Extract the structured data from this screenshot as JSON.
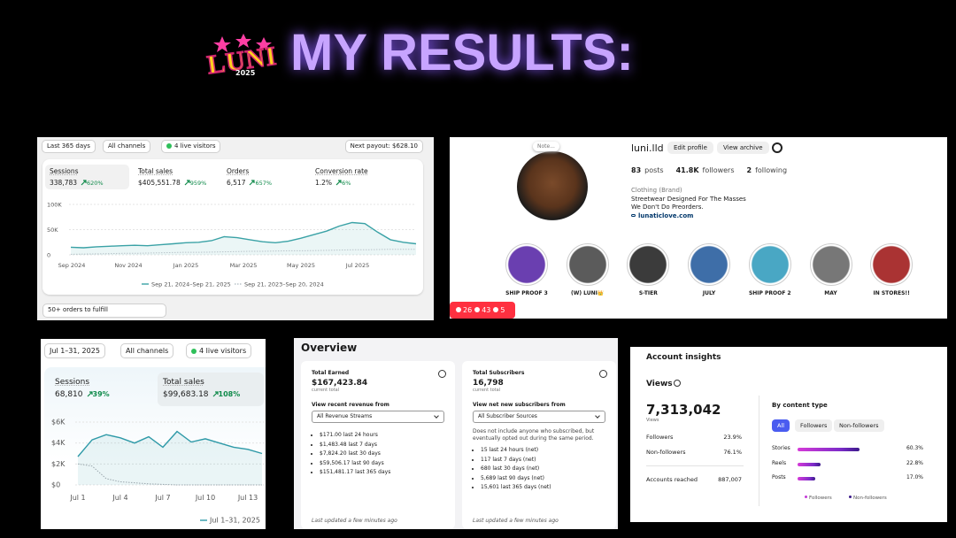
{
  "header": {
    "logo": "LUNI",
    "logo_year": "2025",
    "title": "MY RESULTS:"
  },
  "shop_year": {
    "filters": [
      "Last 365 days",
      "All channels",
      "4 live visitors"
    ],
    "payout": "Next payout: $628.10",
    "metrics": [
      {
        "label": "Sessions",
        "value": "338,783",
        "change": "620%"
      },
      {
        "label": "Total sales",
        "value": "$405,551.78",
        "change": "959%"
      },
      {
        "label": "Orders",
        "value": "6,517",
        "change": "657%"
      },
      {
        "label": "Conversion rate",
        "value": "1.2%",
        "change": "6%"
      }
    ],
    "chart": {
      "type": "line",
      "x_labels": [
        "Sep 2024",
        "Nov 2024",
        "Jan 2025",
        "Mar 2025",
        "May 2025",
        "Jul 2025"
      ],
      "ylim": [
        0,
        100000
      ],
      "yticks": [
        0,
        {
          "value": 50000,
          "label": "50K"
        },
        {
          "value": 100000,
          "label": "100K"
        }
      ],
      "grid": true,
      "series": [
        {
          "name": "Sep 21, 2024–Sep 21, 2025",
          "color": "#3aa2a6",
          "values": [
            15000,
            14000,
            16000,
            17000,
            18000,
            19000,
            18000,
            20000,
            22000,
            24000,
            25000,
            28000,
            36000,
            34000,
            30000,
            26000,
            24000,
            27000,
            33000,
            40000,
            47000,
            57000,
            64000,
            62000,
            45000,
            30000,
            25000,
            22000
          ]
        },
        {
          "name": "Sep 21, 2023–Sep 20, 2024",
          "color": "#b9c4ca",
          "dashed": true,
          "values": [
            1000,
            1500,
            2000,
            2500,
            3000,
            3000,
            3500,
            4000,
            4500,
            5000,
            5000,
            5500,
            6000,
            6500,
            7000,
            7000,
            7500,
            8000,
            8000,
            8500,
            9000,
            9500,
            10000,
            10000,
            10500,
            11000,
            11000,
            11000
          ]
        }
      ]
    },
    "orders": "50+ orders to fulfill"
  },
  "profile": {
    "handle": "luni.lld",
    "note": "Note...",
    "buttons": [
      "Edit profile",
      "View archive"
    ],
    "stats": [
      {
        "value": "83",
        "label": "posts"
      },
      {
        "value": "41.8K",
        "label": "followers"
      },
      {
        "value": "2",
        "label": "following"
      }
    ],
    "bio": [
      "Clothing (Brand)",
      "Streetwear Designed For The Masses",
      "We Don't Do Preorders."
    ],
    "link": "lunaticlove.com",
    "highlights": [
      "SHIP PROOF 3",
      "(W) LUNI👑",
      "S-TIER",
      "JULY",
      "SHIP PROOF 2",
      "MAY",
      "IN STORES!!"
    ],
    "activity": [
      "26",
      "43",
      "5"
    ]
  },
  "shop_month": {
    "filters": [
      "Jul 1–31, 2025",
      "All channels",
      "4 live visitors"
    ],
    "metrics": [
      {
        "label": "Sessions",
        "value": "68,810",
        "change": "39%"
      },
      {
        "label": "Total sales",
        "value": "$99,683.18",
        "change": "108%"
      }
    ],
    "chart": {
      "type": "line",
      "x_labels": [
        "Jul 1",
        "Jul 4",
        "Jul 7",
        "Jul 10",
        "Jul 13"
      ],
      "ylim": [
        0,
        6000
      ],
      "yticks": [
        {
          "value": 0,
          "label": "$0"
        },
        {
          "value": 2000,
          "label": "$2K"
        },
        {
          "value": 4000,
          "label": "$4K"
        },
        {
          "value": 6000,
          "label": "$6K"
        }
      ],
      "grid": true,
      "series": [
        {
          "name": "Jul 1–31, 2025",
          "color": "#2f9aa8",
          "values": [
            2700,
            4300,
            4800,
            4500,
            4000,
            4600,
            3600,
            5100,
            4100,
            4400,
            4000,
            3600,
            3400,
            3000
          ]
        },
        {
          "color": "#9aa6ad",
          "dashed": true,
          "values": [
            2000,
            1800,
            600,
            300,
            200,
            100,
            50,
            0,
            0,
            0,
            0,
            0,
            0,
            0
          ]
        }
      ]
    }
  },
  "overview": {
    "title": "Overview",
    "earned": {
      "label": "Total Earned",
      "value": "$167,423.84",
      "sub": "current total",
      "select_label": "View recent revenue from",
      "select": "All Revenue Streams",
      "items": [
        "$171.00 last 24 hours",
        "$1,483.48 last 7 days",
        "$7,824.20 last 30 days",
        "$59,506.17 last 90 days",
        "$151,481.17 last 365 days"
      ],
      "updated": "Last updated a few minutes ago"
    },
    "subscribers": {
      "label": "Total Subscribers",
      "value": "16,798",
      "sub": "current total",
      "select_label": "View net new subscribers from",
      "select": "All Subscriber Sources",
      "note": "Does not include anyone who subscribed, but eventually opted out during the same period.",
      "items": [
        "15 last 24 hours (net)",
        "117 last 7 days (net)",
        "680 last 30 days (net)",
        "5,689 last 90 days (net)",
        "15,601 last 365 days (net)"
      ],
      "updated": "Last updated a few minutes ago"
    }
  },
  "insights": {
    "title": "Account insights",
    "views_label": "Views",
    "views": "7,313,042",
    "views_sub": "Views",
    "rows": [
      {
        "label": "Followers",
        "value": "23.9%"
      },
      {
        "label": "Non-followers",
        "value": "76.1%"
      }
    ],
    "reached": {
      "label": "Accounts reached",
      "value": "887,007"
    },
    "by_type": "By content type",
    "tabs": [
      "All",
      "Followers",
      "Non-followers"
    ],
    "content": {
      "type": "bar",
      "categories": [
        "Stories",
        "Reels",
        "Posts"
      ],
      "values": [
        60.3,
        22.8,
        17.0
      ],
      "value_labels": [
        "60.3%",
        "22.8%",
        "17.0%"
      ],
      "legend": [
        "Followers",
        "Non-followers"
      ]
    }
  }
}
